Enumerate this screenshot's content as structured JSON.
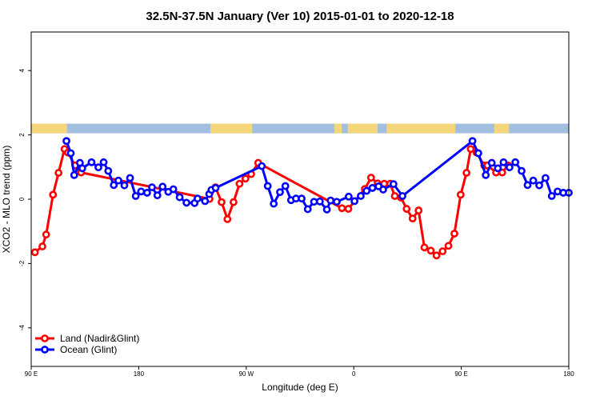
{
  "chart_data": {
    "type": "line",
    "title": "32.5N-37.5N January (Ver 10)   2015-01-01 to 2020-12-18",
    "xlabel": "Longitude (deg E)",
    "ylabel": "XCO2 - MLO trend (ppm)",
    "xlim": [
      90,
      450
    ],
    "ylim": [
      -5.2,
      5.2
    ],
    "x_ticks": [
      {
        "value": 90,
        "label": "90 E"
      },
      {
        "value": 162,
        "label": "180"
      },
      {
        "value": 234,
        "label": "90 W"
      },
      {
        "value": 306,
        "label": "0"
      },
      {
        "value": 378,
        "label": "90 E"
      },
      {
        "value": 450,
        "label": "180"
      }
    ],
    "y_ticks": [
      {
        "value": -4,
        "label": "-4"
      },
      {
        "value": -2,
        "label": "-2"
      },
      {
        "value": 0,
        "label": "0"
      },
      {
        "value": 2,
        "label": "2"
      },
      {
        "value": 4,
        "label": "4"
      }
    ],
    "grid": false,
    "legend_position": "bottom-left",
    "surface_band": {
      "y_range": [
        2.05,
        2.35
      ],
      "land_color": "#f5d57a",
      "ocean_color": "#a3bfe0",
      "land_segments": [
        [
          90,
          114
        ],
        [
          210,
          238
        ],
        [
          293,
          298
        ],
        [
          302,
          322
        ],
        [
          328,
          374
        ],
        [
          400,
          410
        ]
      ]
    },
    "series": [
      {
        "name": "Land (Nadir&Glint)",
        "color": "#ff0000",
        "x": [
          92.5,
          97.5,
          100,
          104.6,
          108.3,
          112.3,
          114.6,
          119.4,
          123.4,
          209.4,
          213.4,
          217.5,
          221.4,
          225.5,
          229.5,
          233.5,
          237.3,
          242,
          298.1,
          302.4,
          313.4,
          317.6,
          322,
          326.4,
          330.4,
          333.5,
          337.6,
          341.4,
          345.4,
          349.4,
          353.3,
          357.6,
          361.4,
          365.5,
          369.4,
          373.4,
          377.6,
          381.5,
          384.3,
          388.2,
          393.4,
          395.5,
          401.3,
          405.4,
          409.4
        ],
        "y": [
          -1.65,
          -1.47,
          -1.1,
          0.14,
          0.82,
          1.56,
          1.45,
          1.05,
          0.83,
          0.01,
          0.37,
          -0.09,
          -0.62,
          -0.09,
          0.48,
          0.64,
          0.78,
          1.13,
          -0.28,
          -0.3,
          0.32,
          0.67,
          0.49,
          0.48,
          0.48,
          0.1,
          0.05,
          -0.3,
          -0.6,
          -0.35,
          -1.5,
          -1.6,
          -1.75,
          -1.62,
          -1.45,
          -1.07,
          0.14,
          0.82,
          1.56,
          1.45,
          1.05,
          1.05,
          0.83,
          0.83,
          1.05
        ]
      },
      {
        "name": "Ocean (Glint)",
        "color": "#0000ff",
        "x": [
          113.6,
          116.5,
          118.8,
          122.6,
          124.2,
          130.4,
          135,
          138.5,
          141.6,
          145.3,
          148.4,
          152.4,
          156.2,
          160,
          163.6,
          167.6,
          170.9,
          174.5,
          178,
          181.8,
          185.2,
          189.4,
          194,
          199.4,
          201.4,
          206.4,
          209.2,
          210.7,
          213.5,
          244.4,
          248.4,
          252.4,
          256.6,
          260.2,
          264,
          267.3,
          271.1,
          275.2,
          279.4,
          283.3,
          288,
          290.5,
          294.6,
          302.6,
          306.5,
          310.7,
          314.6,
          318.5,
          322.6,
          325.7,
          332.6,
          338.6,
          385.5,
          389.4,
          394.4,
          398.4,
          402.5,
          406.3,
          410.3,
          414.2,
          418.4,
          422.4,
          426.2,
          430.2,
          434.4,
          438.6,
          442.5,
          446.3,
          450
        ],
        "y": [
          1.81,
          1.43,
          0.75,
          1.13,
          0.96,
          1.15,
          0.99,
          1.15,
          0.88,
          0.44,
          0.58,
          0.43,
          0.66,
          0.1,
          0.24,
          0.2,
          0.37,
          0.12,
          0.39,
          0.23,
          0.31,
          0.06,
          -0.11,
          -0.12,
          0.02,
          -0.06,
          0.16,
          0.29,
          0.35,
          1.03,
          0.41,
          -0.14,
          0.22,
          0.41,
          -0.03,
          0.02,
          0.02,
          -0.31,
          -0.08,
          -0.07,
          -0.32,
          -0.04,
          -0.08,
          0.08,
          -0.06,
          0.1,
          0.26,
          0.35,
          0.4,
          0.3,
          0.47,
          0.1,
          1.81,
          1.43,
          0.75,
          1.13,
          0.96,
          1.15,
          0.99,
          1.15,
          0.88,
          0.44,
          0.58,
          0.43,
          0.66,
          0.1,
          0.24,
          0.2,
          0.2
        ]
      }
    ]
  }
}
